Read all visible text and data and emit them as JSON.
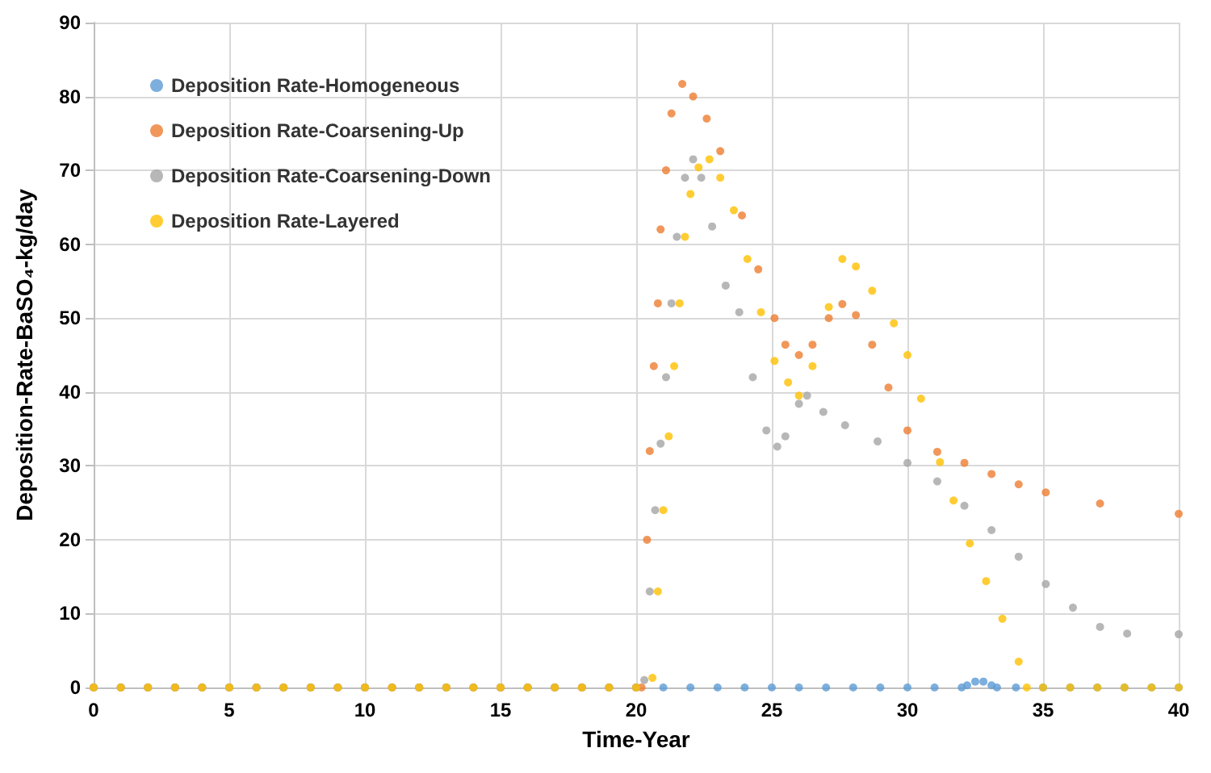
{
  "chart_data": {
    "type": "scatter",
    "xlabel": "Time-Year",
    "ylabel": "Deposition-Rate-BaSO₄-kg/day",
    "xlim": [
      0,
      40
    ],
    "xticks": [
      0,
      5,
      10,
      15,
      20,
      25,
      30,
      35,
      40
    ],
    "ylim": [
      0,
      90
    ],
    "yticks": [
      0,
      10,
      20,
      30,
      40,
      50,
      60,
      70,
      80,
      90
    ],
    "grid": true,
    "legend": "top left",
    "marker": "circle",
    "series": [
      {
        "name": "Deposition Rate-Homogeneous",
        "color": "#5b9bd5",
        "x": [
          0,
          1,
          2,
          3,
          4,
          5,
          6,
          7,
          8,
          9,
          10,
          11,
          12,
          13,
          14,
          15,
          16,
          17,
          18,
          19,
          20,
          21,
          22,
          23,
          24,
          25,
          26,
          27,
          28,
          29,
          30,
          31,
          32,
          32.2,
          32.5,
          32.8,
          33.1,
          33.3,
          34,
          35,
          36,
          37,
          38,
          39,
          40
        ],
        "values": [
          0,
          0,
          0,
          0,
          0,
          0,
          0,
          0,
          0,
          0,
          0,
          0,
          0,
          0,
          0,
          0,
          0,
          0,
          0,
          0,
          0,
          0,
          0,
          0,
          0,
          0,
          0,
          0,
          0,
          0,
          0,
          0,
          0,
          0.3,
          0.8,
          0.8,
          0.3,
          0,
          0,
          0,
          0,
          0,
          0,
          0,
          0
        ]
      },
      {
        "name": "Deposition Rate-Coarsening-Up",
        "color": "#ed7d31",
        "x": [
          0,
          1,
          2,
          3,
          4,
          5,
          6,
          7,
          8,
          9,
          10,
          11,
          12,
          13,
          14,
          15,
          16,
          17,
          18,
          19,
          20,
          20.2,
          20.4,
          20.5,
          20.65,
          20.8,
          20.9,
          21.1,
          21.3,
          21.7,
          22.1,
          22.6,
          23.1,
          23.9,
          24.5,
          25.1,
          25.5,
          26,
          26.5,
          27.1,
          27.6,
          28.1,
          28.7,
          29.3,
          30,
          31.1,
          32.1,
          33.1,
          34.1,
          35.1,
          37.1,
          40
        ],
        "values": [
          0,
          0,
          0,
          0,
          0,
          0,
          0,
          0,
          0,
          0,
          0,
          0,
          0,
          0,
          0,
          0,
          0,
          0,
          0,
          0,
          0,
          0,
          20,
          32,
          43.5,
          52,
          62,
          70,
          77.7,
          81.7,
          80,
          77,
          72.6,
          63.9,
          56.6,
          50,
          46.4,
          45,
          46.4,
          50,
          51.9,
          50.4,
          46.4,
          40.6,
          34.8,
          31.9,
          30.4,
          28.9,
          27.5,
          26.4,
          24.9,
          23.5
        ]
      },
      {
        "name": "Deposition Rate-Coarsening-Down",
        "color": "#a5a5a5",
        "x": [
          0,
          1,
          2,
          3,
          4,
          5,
          6,
          7,
          8,
          9,
          10,
          11,
          12,
          13,
          14,
          15,
          16,
          17,
          18,
          19,
          20,
          20.3,
          20.5,
          20.7,
          20.9,
          21.1,
          21.3,
          21.5,
          21.8,
          22.1,
          22.4,
          22.8,
          23.3,
          23.8,
          24.3,
          24.8,
          25.2,
          25.5,
          26,
          26.3,
          26.9,
          27.7,
          28.9,
          30,
          31.1,
          32.1,
          33.1,
          34.1,
          35.1,
          36.1,
          37.1,
          38.1,
          40
        ],
        "values": [
          0,
          0,
          0,
          0,
          0,
          0,
          0,
          0,
          0,
          0,
          0,
          0,
          0,
          0,
          0,
          0,
          0,
          0,
          0,
          0,
          0,
          1,
          13,
          24,
          33,
          42,
          52,
          61,
          69,
          71.5,
          69,
          62.4,
          54.4,
          50.8,
          42,
          34.8,
          32.6,
          34,
          38.4,
          39.5,
          37.3,
          35.5,
          33.3,
          30.4,
          27.9,
          24.6,
          21.3,
          17.7,
          14,
          10.8,
          8.2,
          7.3,
          7.2
        ]
      },
      {
        "name": "Deposition Rate-Layered",
        "color": "#ffc000",
        "x": [
          0,
          1,
          2,
          3,
          4,
          5,
          6,
          7,
          8,
          9,
          10,
          11,
          12,
          13,
          14,
          15,
          16,
          17,
          18,
          19,
          20,
          20.6,
          20.8,
          21,
          21.2,
          21.4,
          21.6,
          21.8,
          22,
          22.3,
          22.7,
          23.1,
          23.6,
          24.1,
          24.6,
          25.1,
          25.6,
          26,
          26.5,
          27.1,
          27.6,
          28.1,
          28.7,
          29.5,
          30,
          30.5,
          31.2,
          31.7,
          32.3,
          32.9,
          33.5,
          34.1,
          34.4,
          35,
          36,
          37,
          38,
          39,
          40
        ],
        "values": [
          0,
          0,
          0,
          0,
          0,
          0,
          0,
          0,
          0,
          0,
          0,
          0,
          0,
          0,
          0,
          0,
          0,
          0,
          0,
          0,
          0,
          1.3,
          13,
          24,
          34,
          43.5,
          52,
          61,
          66.8,
          70.4,
          71.5,
          69,
          64.6,
          58,
          50.8,
          44.2,
          41.3,
          39.5,
          43.5,
          51.5,
          58,
          57,
          53.7,
          49.3,
          45,
          39.1,
          30.5,
          25.3,
          19.5,
          14.4,
          9.3,
          3.5,
          0,
          0,
          0,
          0,
          0,
          0,
          0
        ]
      }
    ]
  }
}
